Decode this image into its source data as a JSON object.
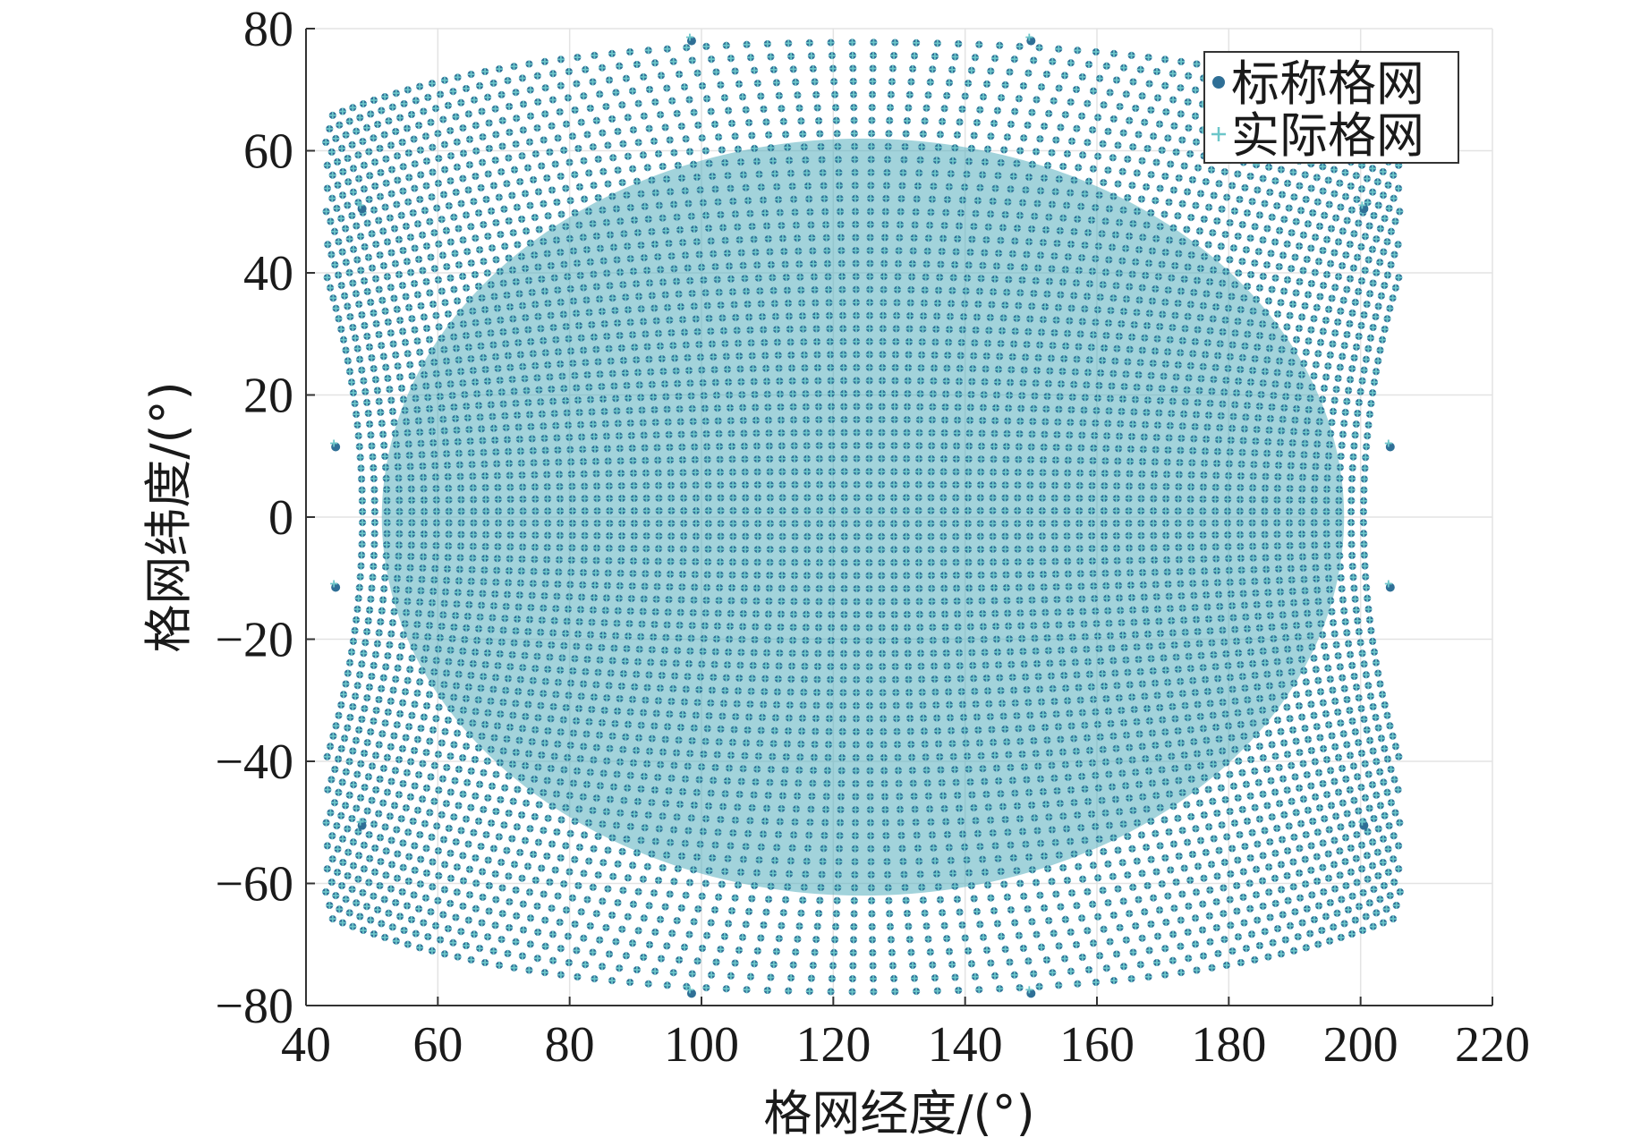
{
  "chart_data": {
    "type": "scatter",
    "title": "",
    "xlabel": "格网经度/(°)",
    "ylabel": "格网纬度/(°)",
    "xlim": [
      40,
      220
    ],
    "ylim": [
      -80,
      80
    ],
    "xticks": [
      40,
      60,
      80,
      100,
      120,
      140,
      160,
      180,
      200,
      220
    ],
    "yticks": [
      80,
      60,
      40,
      20,
      0,
      -20,
      -40,
      -60,
      -80
    ],
    "xtick_labels": [
      "40",
      "60",
      "80",
      "100",
      "120",
      "140",
      "160",
      "180",
      "200",
      "220"
    ],
    "ytick_labels": [
      "80",
      "60",
      "40",
      "20",
      "0",
      "−20",
      "−40",
      "−60",
      "−80"
    ],
    "grid": true,
    "legend_position": "top-right",
    "center": [
      124.5,
      0
    ],
    "series": [
      {
        "name": "标称格网",
        "marker": "filled-circle",
        "color": "#2f6f96"
      },
      {
        "name": "实际格网",
        "marker": "plus",
        "color": "#6cc6c9"
      }
    ],
    "field_color": "#55aebd",
    "lattice": {
      "rows": 75,
      "cols": 85,
      "u_step_deg": 1.5,
      "v_step_deg": 1.5,
      "u_max_deg": 62,
      "v_max_deg": 56,
      "sample_points_nominal": [
        [
          98.5,
          78
        ],
        [
          150,
          78
        ],
        [
          98.5,
          -78
        ],
        [
          150,
          -78
        ],
        [
          44.5,
          11.5
        ],
        [
          44.5,
          -11.5
        ],
        [
          204.5,
          11.5
        ],
        [
          204.5,
          -11.5
        ],
        [
          48.5,
          50.5
        ],
        [
          48.5,
          -50.5
        ],
        [
          200.5,
          50.5
        ],
        [
          200.5,
          -50.5
        ]
      ]
    }
  }
}
